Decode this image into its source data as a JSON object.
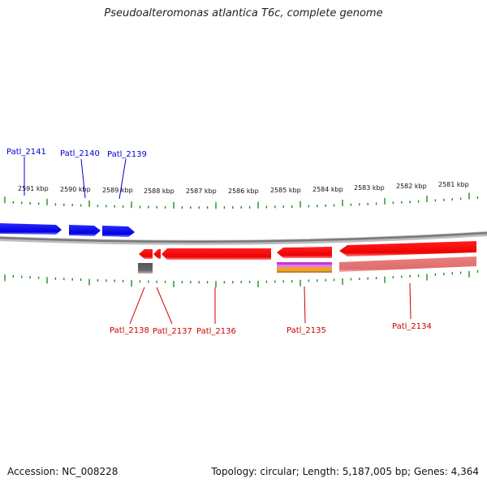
{
  "title": "Pseudoalteromonas atlantica T6c, complete genome",
  "footer": {
    "accession": "Accession: NC_008228",
    "summary": "Topology: circular; Length: 5,187,005 bp; Genes: 4,364"
  },
  "scale": {
    "labels": [
      "2591 kbp",
      "2590 kbp",
      "2589 kbp",
      "2588 kbp",
      "2587 kbp",
      "2586 kbp",
      "2585 kbp",
      "2584 kbp",
      "2583 kbp",
      "2582 kbp",
      "2581 kbp"
    ]
  },
  "genes_forward": [
    "Patl_2141",
    "Patl_2140",
    "Patl_2139"
  ],
  "genes_reverse": [
    "Patl_2138",
    "Patl_2137",
    "Patl_2136",
    "Patl_2135",
    "Patl_2134"
  ],
  "colors": {
    "forward": "#0000cc",
    "reverse": "#cc0000",
    "tick": "#228b22",
    "backbone": "#808080"
  }
}
